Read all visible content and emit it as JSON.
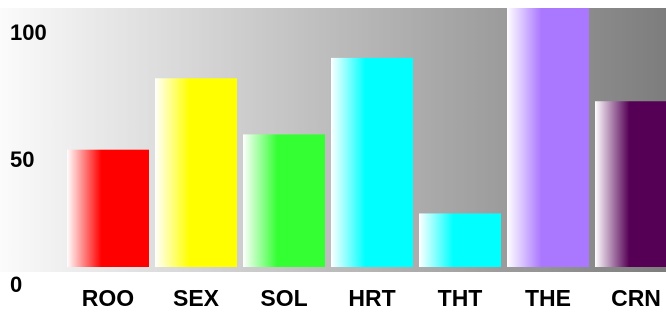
{
  "chart_data": {
    "type": "bar",
    "categories": [
      "ROO",
      "SEX",
      "SOL",
      "HRT",
      "THT",
      "THE",
      "CRN"
    ],
    "values": [
      46,
      74,
      52,
      82,
      21,
      102,
      65
    ],
    "colors": [
      "#ff0000",
      "#ffff00",
      "#33ff33",
      "#00ffff",
      "#00ffff",
      "#aa77ff",
      "#550055"
    ],
    "ylim": [
      0,
      100
    ],
    "y_ticks": [
      "0",
      "50",
      "100"
    ],
    "title": "",
    "xlabel": "",
    "ylabel": "",
    "grid": false,
    "legend": "none",
    "background": "gradient light-gray to dark-gray"
  }
}
